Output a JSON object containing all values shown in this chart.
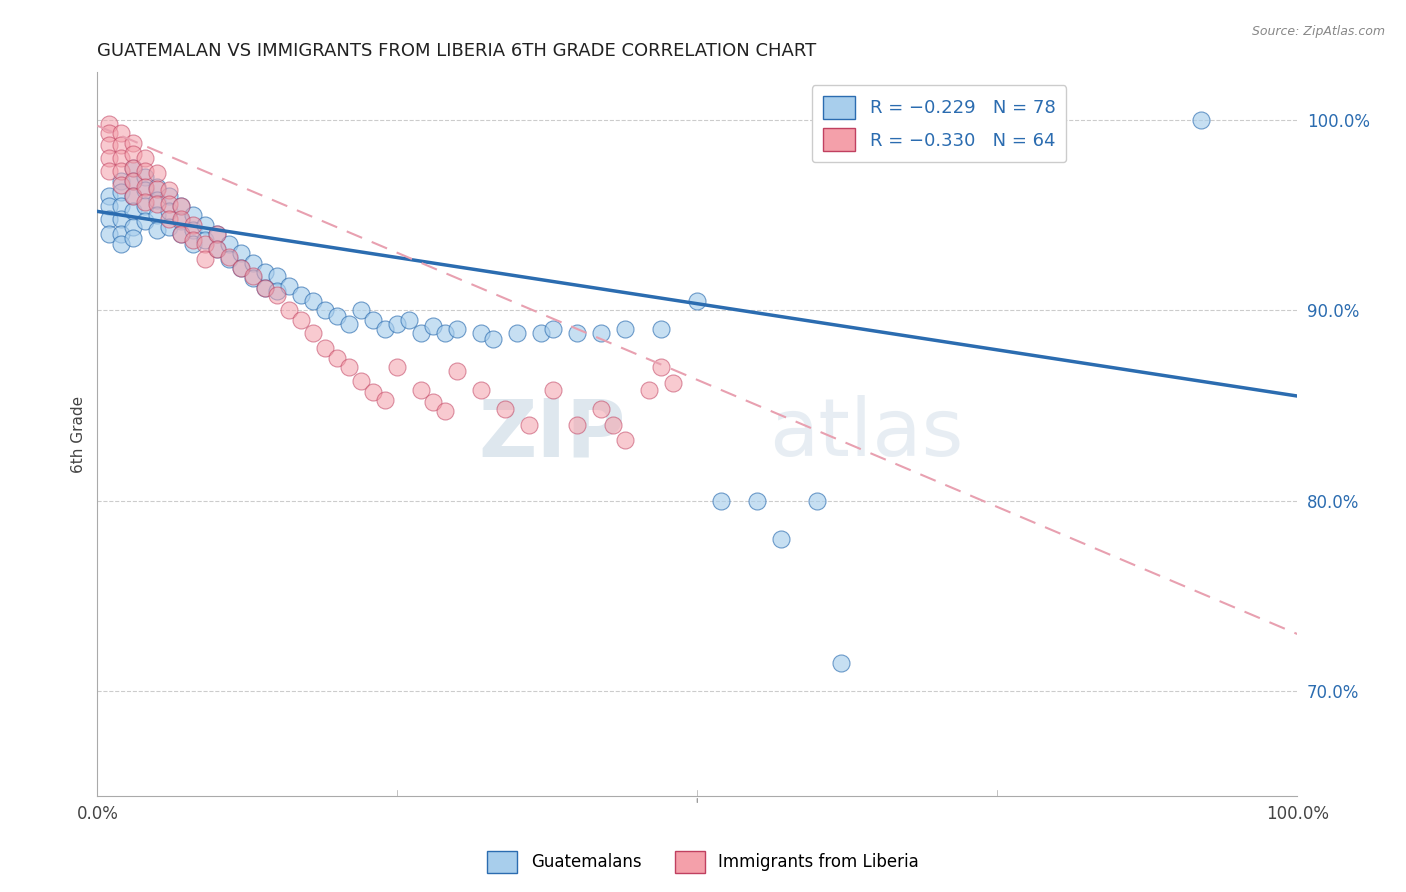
{
  "title": "GUATEMALAN VS IMMIGRANTS FROM LIBERIA 6TH GRADE CORRELATION CHART",
  "source": "Source: ZipAtlas.com",
  "ylabel": "6th Grade",
  "legend_blue_r": "R = −0.229",
  "legend_blue_n": "N = 78",
  "legend_pink_r": "R = −0.330",
  "legend_pink_n": "N = 64",
  "legend_label_blue": "Guatemalans",
  "legend_label_pink": "Immigrants from Liberia",
  "blue_color": "#A8CEEC",
  "pink_color": "#F4A0AA",
  "trend_blue_color": "#2B6CB0",
  "trend_pink_color": "#E05070",
  "trend_pink_dash_color": "#E8A0B0",
  "watermark_zip": "ZIP",
  "watermark_atlas": "atlas",
  "blue_x": [
    0.01,
    0.01,
    0.01,
    0.01,
    0.02,
    0.02,
    0.02,
    0.02,
    0.02,
    0.02,
    0.03,
    0.03,
    0.03,
    0.03,
    0.03,
    0.03,
    0.04,
    0.04,
    0.04,
    0.04,
    0.05,
    0.05,
    0.05,
    0.05,
    0.06,
    0.06,
    0.06,
    0.07,
    0.07,
    0.07,
    0.08,
    0.08,
    0.08,
    0.09,
    0.09,
    0.1,
    0.1,
    0.11,
    0.11,
    0.12,
    0.12,
    0.13,
    0.13,
    0.14,
    0.14,
    0.15,
    0.15,
    0.16,
    0.17,
    0.18,
    0.19,
    0.2,
    0.21,
    0.22,
    0.23,
    0.24,
    0.25,
    0.26,
    0.27,
    0.28,
    0.29,
    0.3,
    0.32,
    0.33,
    0.35,
    0.37,
    0.38,
    0.4,
    0.42,
    0.44,
    0.47,
    0.5,
    0.52,
    0.55,
    0.57,
    0.6,
    0.62,
    0.92
  ],
  "blue_y": [
    0.96,
    0.955,
    0.948,
    0.94,
    0.968,
    0.962,
    0.955,
    0.948,
    0.94,
    0.935,
    0.975,
    0.968,
    0.96,
    0.952,
    0.944,
    0.938,
    0.97,
    0.963,
    0.955,
    0.947,
    0.965,
    0.958,
    0.95,
    0.942,
    0.96,
    0.952,
    0.944,
    0.955,
    0.947,
    0.94,
    0.95,
    0.942,
    0.935,
    0.945,
    0.937,
    0.94,
    0.932,
    0.935,
    0.927,
    0.93,
    0.922,
    0.925,
    0.917,
    0.92,
    0.912,
    0.918,
    0.91,
    0.913,
    0.908,
    0.905,
    0.9,
    0.897,
    0.893,
    0.9,
    0.895,
    0.89,
    0.893,
    0.895,
    0.888,
    0.892,
    0.888,
    0.89,
    0.888,
    0.885,
    0.888,
    0.888,
    0.89,
    0.888,
    0.888,
    0.89,
    0.89,
    0.905,
    0.8,
    0.8,
    0.78,
    0.8,
    0.715,
    1.0
  ],
  "pink_x": [
    0.01,
    0.01,
    0.01,
    0.01,
    0.01,
    0.02,
    0.02,
    0.02,
    0.02,
    0.02,
    0.03,
    0.03,
    0.03,
    0.03,
    0.03,
    0.04,
    0.04,
    0.04,
    0.04,
    0.05,
    0.05,
    0.05,
    0.06,
    0.06,
    0.06,
    0.07,
    0.07,
    0.07,
    0.08,
    0.08,
    0.09,
    0.09,
    0.1,
    0.1,
    0.11,
    0.12,
    0.13,
    0.14,
    0.15,
    0.16,
    0.17,
    0.18,
    0.19,
    0.2,
    0.21,
    0.22,
    0.23,
    0.24,
    0.25,
    0.27,
    0.28,
    0.29,
    0.3,
    0.32,
    0.34,
    0.36,
    0.38,
    0.4,
    0.42,
    0.43,
    0.44,
    0.46,
    0.47,
    0.48
  ],
  "pink_y": [
    0.998,
    0.993,
    0.987,
    0.98,
    0.973,
    0.993,
    0.987,
    0.98,
    0.973,
    0.966,
    0.988,
    0.982,
    0.975,
    0.968,
    0.96,
    0.98,
    0.973,
    0.965,
    0.957,
    0.972,
    0.964,
    0.956,
    0.963,
    0.956,
    0.948,
    0.955,
    0.948,
    0.94,
    0.945,
    0.937,
    0.935,
    0.927,
    0.94,
    0.932,
    0.928,
    0.922,
    0.918,
    0.912,
    0.908,
    0.9,
    0.895,
    0.888,
    0.88,
    0.875,
    0.87,
    0.863,
    0.857,
    0.853,
    0.87,
    0.858,
    0.852,
    0.847,
    0.868,
    0.858,
    0.848,
    0.84,
    0.858,
    0.84,
    0.848,
    0.84,
    0.832,
    0.858,
    0.87,
    0.862
  ],
  "blue_trend_x": [
    0.0,
    1.0
  ],
  "blue_trend_y": [
    0.952,
    0.855
  ],
  "pink_trend_x": [
    0.0,
    1.0
  ],
  "pink_trend_y": [
    0.997,
    0.73
  ],
  "xlim": [
    0.0,
    1.0
  ],
  "ylim": [
    0.645,
    1.025
  ]
}
